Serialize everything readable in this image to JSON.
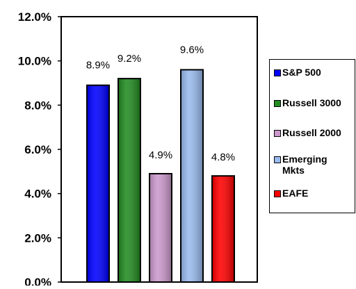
{
  "chart_data": {
    "type": "bar",
    "categories": [
      "S&P 500",
      "Russell 3000",
      "Russell 2000",
      "Emerging Mkts",
      "EAFE"
    ],
    "values": [
      8.9,
      9.2,
      4.9,
      9.6,
      4.8
    ],
    "data_labels": [
      "8.9%",
      "9.2%",
      "4.9%",
      "9.6%",
      "4.8%"
    ],
    "colors": [
      "#0000ff",
      "#228b22",
      "#cc99cc",
      "#99bbee",
      "#ff0000"
    ],
    "ylim": [
      0,
      12
    ],
    "yticks": [
      "0.0%",
      "2.0%",
      "4.0%",
      "6.0%",
      "8.0%",
      "10.0%",
      "12.0%"
    ],
    "legend": {
      "placement": "right",
      "entries": [
        "S&P 500",
        "Russell 3000",
        "Russell 2000",
        "Emerging Mkts",
        "EAFE"
      ]
    },
    "grid": false,
    "title": "",
    "xlabel": "",
    "ylabel": ""
  }
}
